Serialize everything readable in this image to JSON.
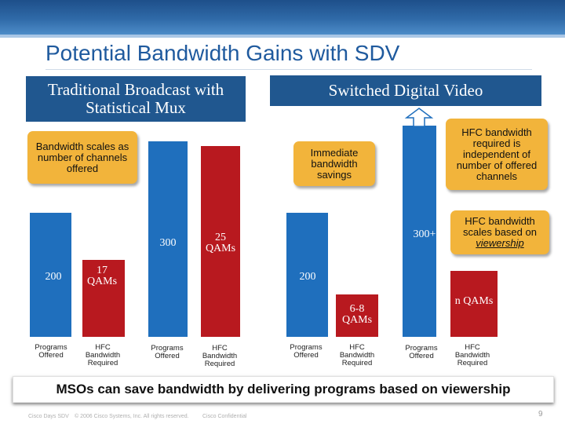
{
  "slide": {
    "title": "Potential Bandwidth Gains with SDV",
    "left_header": "Traditional Broadcast with Statistical Mux",
    "right_header": "Switched Digital Video",
    "banner": "MSOs can save bandwidth by delivering programs based on viewership",
    "footer": {
      "event": "Cisco Days SDV",
      "copyright": "© 2006 Cisco Systems, Inc. All rights reserved.",
      "confidential": "Cisco Confidential",
      "page": "9"
    },
    "colors": {
      "programs_bar": "#1f6fbd",
      "hfc_bar": "#b8191f",
      "header": "#20578f",
      "callout": "#f2b43b",
      "title": "#1f5a9e"
    }
  },
  "callouts": {
    "scales_channels": "Bandwidth scales as number of channels offered",
    "immediate_savings": "Immediate bandwidth savings",
    "independent": "HFC bandwidth required is independent of number of offered channels",
    "viewership_prefix": "HFC bandwidth scales based on ",
    "viewership_word": "viewership"
  },
  "chart_data": {
    "type": "bar",
    "categories": [
      "Programs Offered",
      "HFC Bandwidth Required"
    ],
    "groups": [
      {
        "value_labels": [
          "200",
          "17 QAMs"
        ],
        "programs": 200,
        "hfc_qams": 17
      },
      {
        "value_labels": [
          "300",
          "25 QAMs"
        ],
        "programs": 300,
        "hfc_qams": 25
      },
      {
        "value_labels": [
          "200",
          "6-8 QAMs"
        ],
        "programs": 200,
        "hfc_qams": [
          6,
          8
        ]
      },
      {
        "value_labels": [
          "300+",
          "n QAMs"
        ],
        "programs": 300,
        "hfc_qams": "n"
      }
    ],
    "axis_labels": {
      "programs": "Programs Offered",
      "hfc": "HFC Bandwidth Required"
    }
  }
}
